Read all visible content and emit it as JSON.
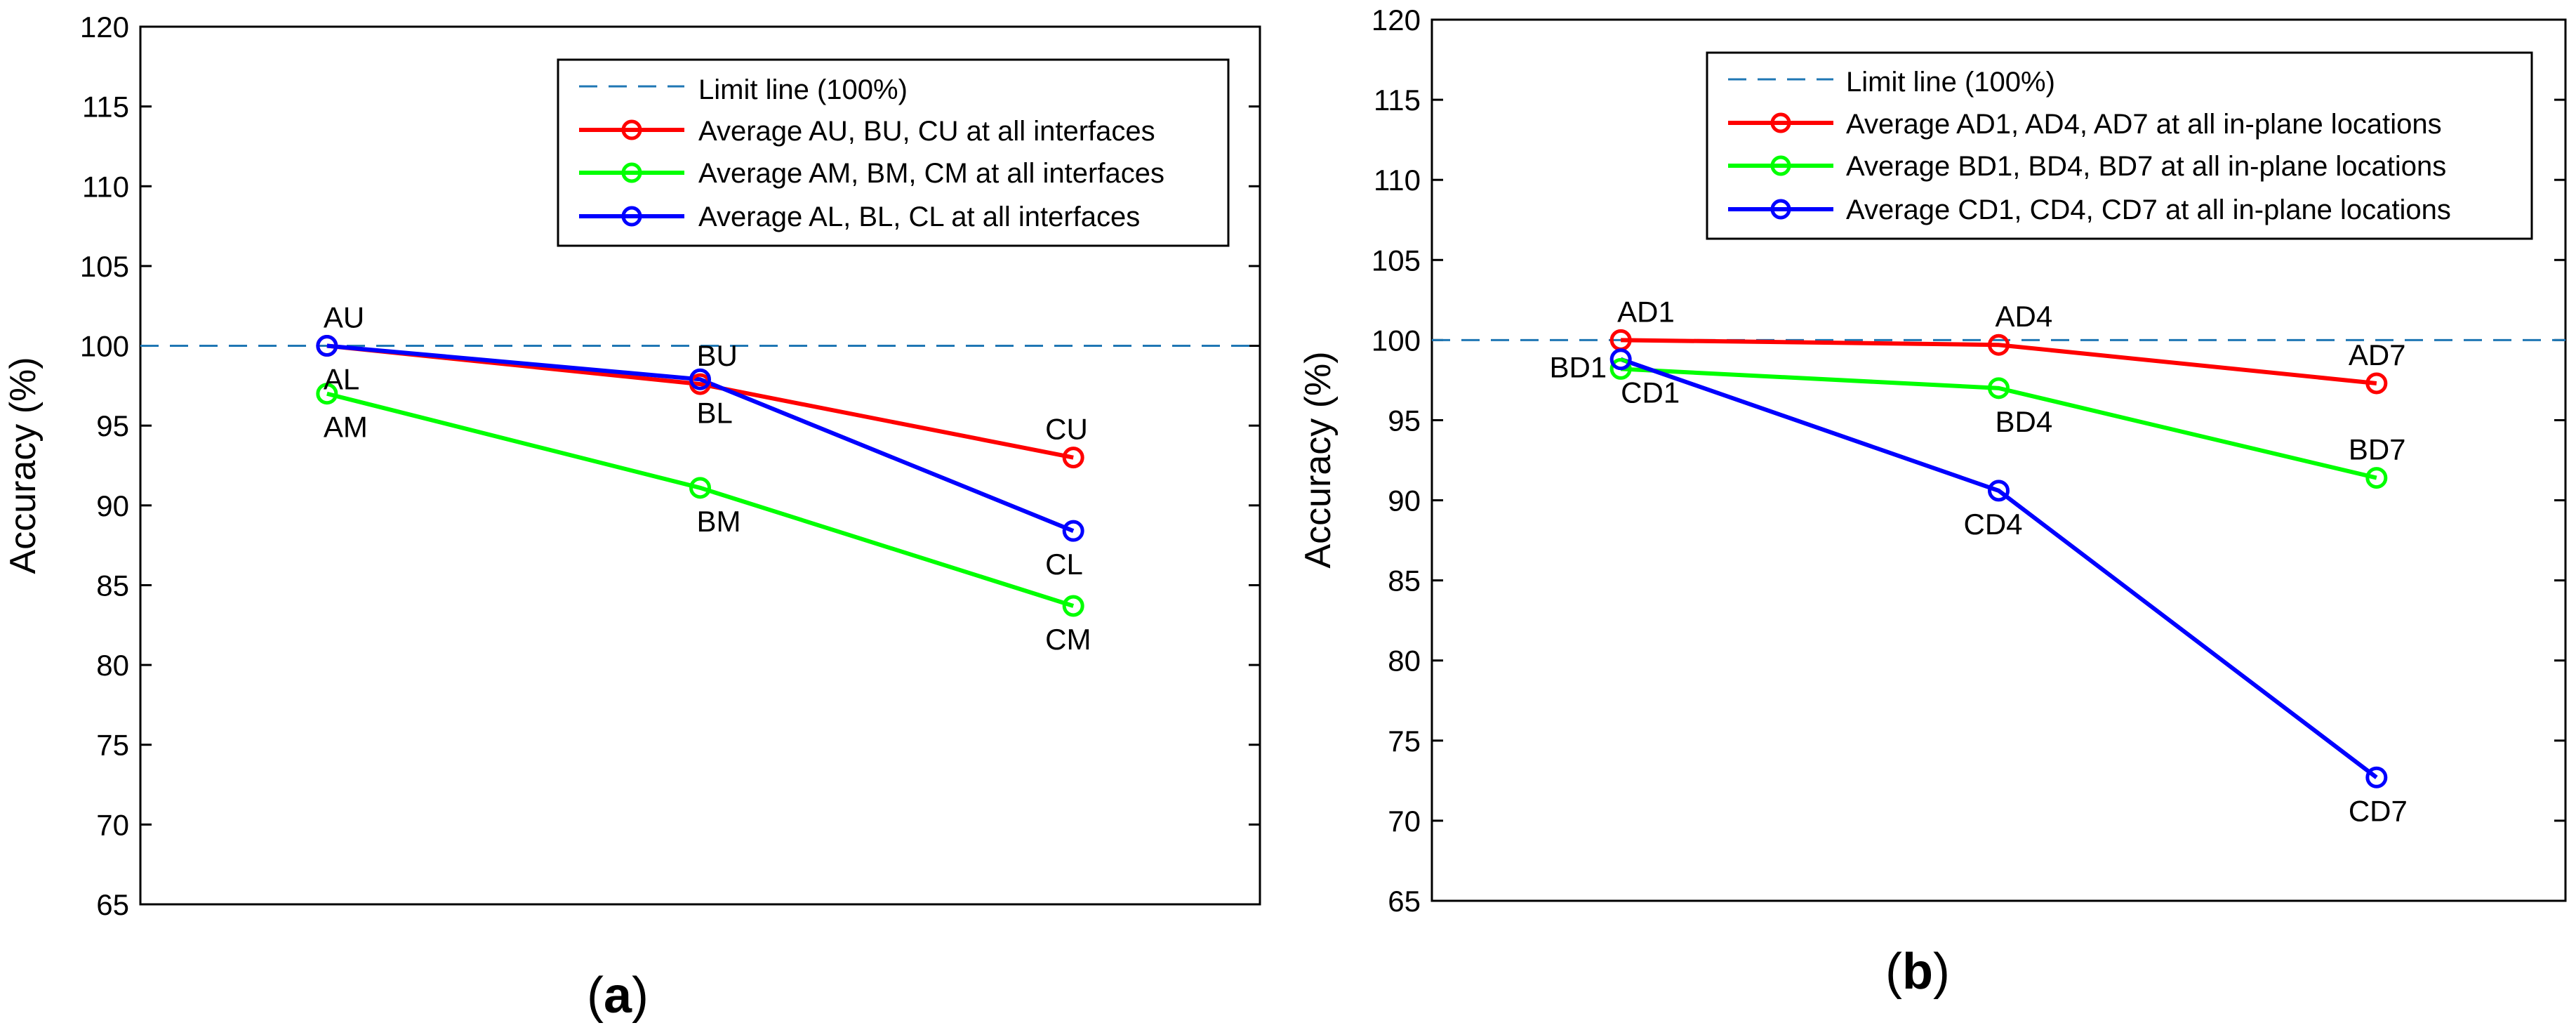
{
  "chart_data": [
    {
      "type": "line",
      "panel_label": "(a)",
      "panel_letter": "a",
      "title": "",
      "xlabel": "",
      "ylabel": "Accuracy (%)",
      "ylim": [
        65,
        120
      ],
      "yticks": [
        65,
        70,
        75,
        80,
        85,
        90,
        95,
        100,
        105,
        110,
        115,
        120
      ],
      "xlim": [
        0.5,
        3.5
      ],
      "x": [
        1,
        2,
        3
      ],
      "grid": false,
      "legend_position": "top-right",
      "reference_line": {
        "label": "Limit line (100%)",
        "value": 100,
        "color": "#1f77b4"
      },
      "series": [
        {
          "name": "Average AU, BU, CU at all interfaces",
          "color": "#ff0000",
          "values": [
            100.0,
            97.6,
            93.0
          ],
          "point_labels": [
            "AU",
            "BU",
            "CU"
          ],
          "label_pos": [
            "above",
            "above",
            "above"
          ]
        },
        {
          "name": "Average AM, BM, CM at all interfaces",
          "color": "#00ff00",
          "values": [
            97.0,
            91.1,
            83.7
          ],
          "point_labels": [
            "AM",
            "BM",
            "CM"
          ],
          "label_pos": [
            "below",
            "below",
            "below"
          ]
        },
        {
          "name": "Average AL, BL, CL at all interfaces",
          "color": "#0000ff",
          "values": [
            100.0,
            97.9,
            88.4
          ],
          "point_labels": [
            "AL",
            "BL",
            "CL"
          ],
          "label_pos": [
            "below",
            "below",
            "below"
          ]
        }
      ]
    },
    {
      "type": "line",
      "panel_label": "(b)",
      "panel_letter": "b",
      "title": "",
      "xlabel": "",
      "ylabel": "Accuracy (%)",
      "ylim": [
        65,
        120
      ],
      "yticks": [
        65,
        70,
        75,
        80,
        85,
        90,
        95,
        100,
        105,
        110,
        115,
        120
      ],
      "xlim": [
        0.5,
        3.5
      ],
      "x": [
        1,
        2,
        3
      ],
      "grid": false,
      "legend_position": "top-right",
      "reference_line": {
        "label": "Limit line (100%)",
        "value": 100,
        "color": "#1f77b4"
      },
      "series": [
        {
          "name": "Average AD1, AD4, AD7 at all in-plane locations",
          "color": "#ff0000",
          "values": [
            100.0,
            99.7,
            97.3
          ],
          "point_labels": [
            "AD1",
            "AD4",
            "AD7"
          ],
          "label_pos": [
            "above",
            "above",
            "above"
          ]
        },
        {
          "name": "Average BD1, BD4, BD7 at all in-plane locations",
          "color": "#00ff00",
          "values": [
            98.2,
            97.0,
            91.4
          ],
          "point_labels": [
            "BD1",
            "BD4",
            "BD7"
          ],
          "label_pos": [
            "left",
            "below",
            "above"
          ]
        },
        {
          "name": "Average CD1, CD4, CD7 at all in-plane locations",
          "color": "#0000ff",
          "values": [
            98.8,
            90.6,
            72.7
          ],
          "point_labels": [
            "CD1",
            "CD4",
            "CD7"
          ],
          "label_pos": [
            "below",
            "below",
            "below"
          ]
        }
      ]
    }
  ]
}
